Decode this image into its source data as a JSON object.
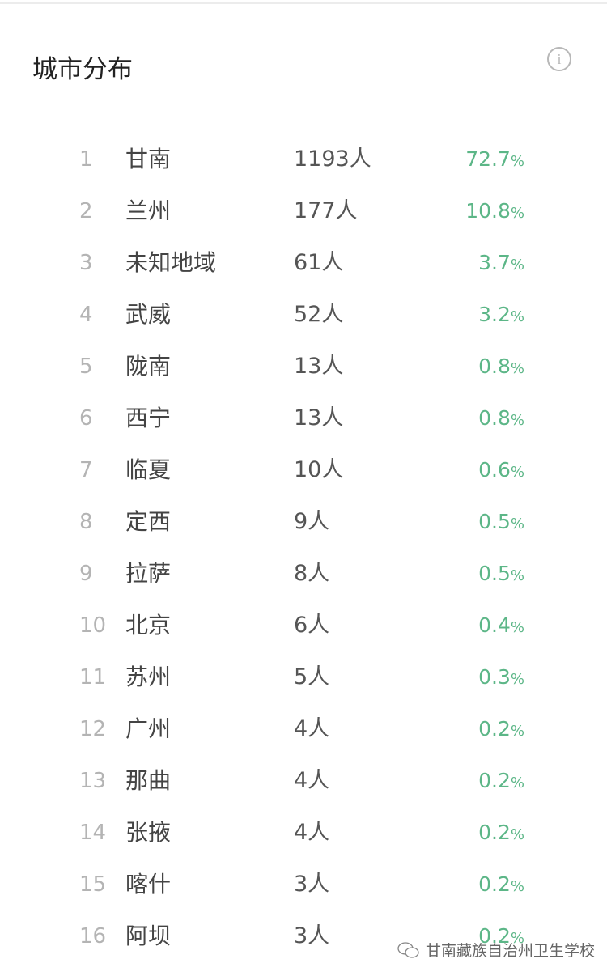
{
  "header": {
    "title": "城市分布",
    "info_icon": "info-icon"
  },
  "accent_color": "#5cb687",
  "rows": [
    {
      "rank": "1",
      "city": "甘南",
      "count": "1193人",
      "percent": "72.7",
      "unit": "%"
    },
    {
      "rank": "2",
      "city": "兰州",
      "count": "177人",
      "percent": "10.8",
      "unit": "%"
    },
    {
      "rank": "3",
      "city": "未知地域",
      "count": "61人",
      "percent": "3.7",
      "unit": "%"
    },
    {
      "rank": "4",
      "city": "武威",
      "count": "52人",
      "percent": "3.2",
      "unit": "%"
    },
    {
      "rank": "5",
      "city": "陇南",
      "count": "13人",
      "percent": "0.8",
      "unit": "%"
    },
    {
      "rank": "6",
      "city": "西宁",
      "count": "13人",
      "percent": "0.8",
      "unit": "%"
    },
    {
      "rank": "7",
      "city": "临夏",
      "count": "10人",
      "percent": "0.6",
      "unit": "%"
    },
    {
      "rank": "8",
      "city": "定西",
      "count": "9人",
      "percent": "0.5",
      "unit": "%"
    },
    {
      "rank": "9",
      "city": "拉萨",
      "count": "8人",
      "percent": "0.5",
      "unit": "%"
    },
    {
      "rank": "10",
      "city": "北京",
      "count": "6人",
      "percent": "0.4",
      "unit": "%"
    },
    {
      "rank": "11",
      "city": "苏州",
      "count": "5人",
      "percent": "0.3",
      "unit": "%"
    },
    {
      "rank": "12",
      "city": "广州",
      "count": "4人",
      "percent": "0.2",
      "unit": "%"
    },
    {
      "rank": "13",
      "city": "那曲",
      "count": "4人",
      "percent": "0.2",
      "unit": "%"
    },
    {
      "rank": "14",
      "city": "张掖",
      "count": "4人",
      "percent": "0.2",
      "unit": "%"
    },
    {
      "rank": "15",
      "city": "喀什",
      "count": "3人",
      "percent": "0.2",
      "unit": "%"
    },
    {
      "rank": "16",
      "city": "阿坝",
      "count": "3人",
      "percent": "0.2",
      "unit": "%"
    }
  ],
  "watermark": {
    "text": "甘南藏族自治州卫生学校",
    "icon": "wechat-icon"
  }
}
